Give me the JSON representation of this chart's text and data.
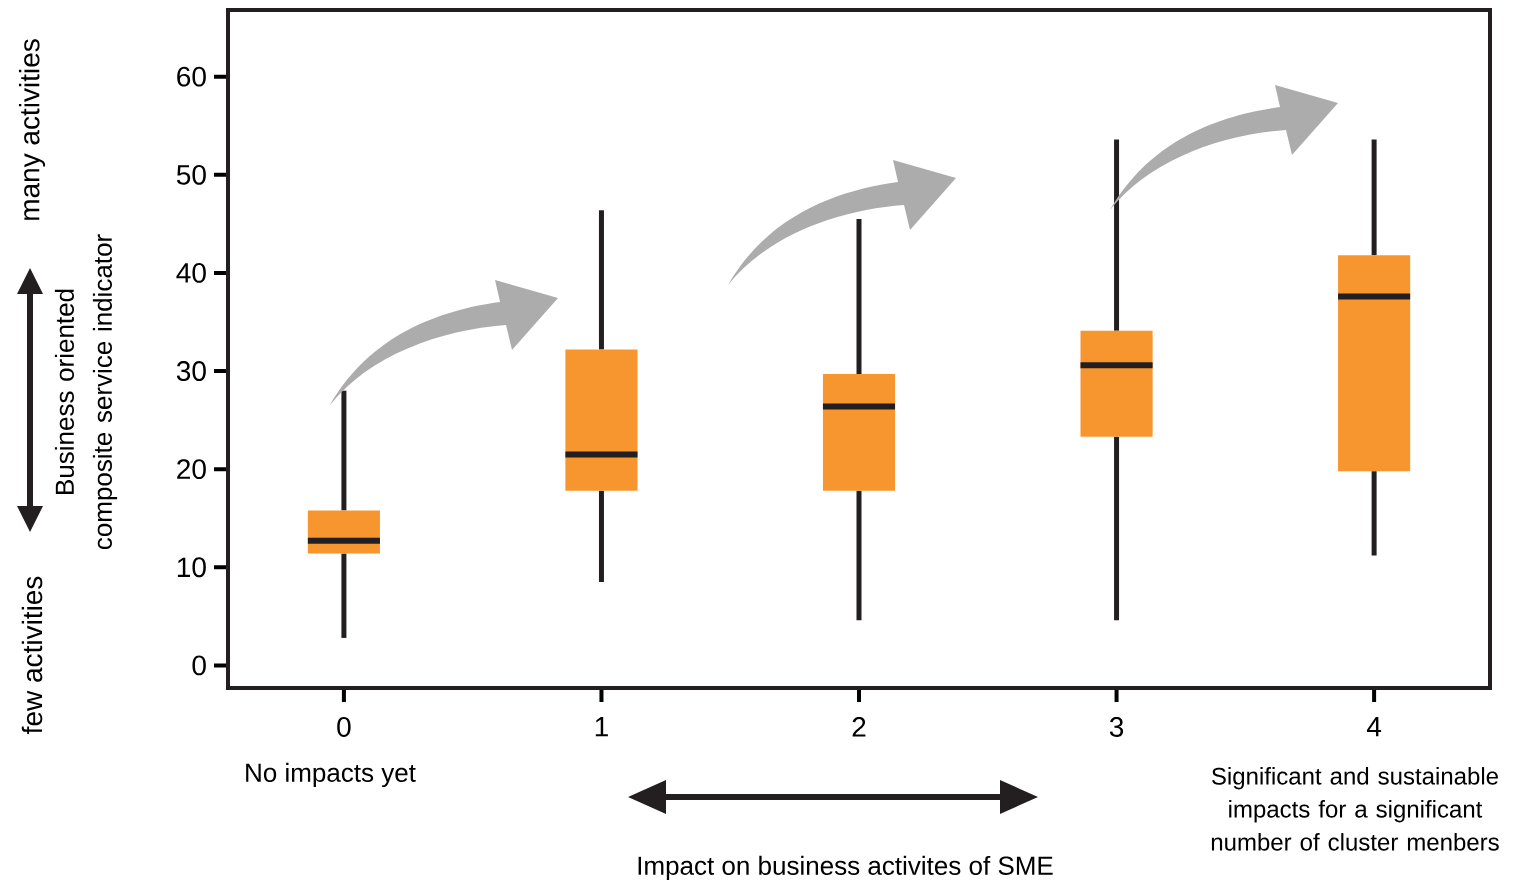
{
  "chart_data": {
    "type": "box",
    "xlabel": "Impact on business activites of SME",
    "ylabel": "Business oriented composite service indicator",
    "categories": [
      "0",
      "1",
      "2",
      "3",
      "4"
    ],
    "boxes": [
      {
        "low": 2.8,
        "q1": 11.4,
        "median": 12.7,
        "q3": 15.8,
        "high": 28
      },
      {
        "low": 8.5,
        "q1": 17.8,
        "median": 21.5,
        "q3": 32.2,
        "high": 46.4
      },
      {
        "low": 4.6,
        "q1": 17.8,
        "median": 26.4,
        "q3": 29.7,
        "high": 45.5
      },
      {
        "low": 4.6,
        "q1": 23.3,
        "median": 30.6,
        "q3": 34.1,
        "high": 53.6
      },
      {
        "low": 11.2,
        "q1": 19.8,
        "median": 37.6,
        "q3": 41.8,
        "high": 53.6
      }
    ],
    "color": "#f7962f",
    "ylim": [
      -2.3,
      66.8
    ],
    "yticks": [
      0,
      10,
      20,
      30,
      40,
      50,
      60
    ],
    "annotations": [
      "No impacts yet",
      "Significant and sustainable impacts for a significant number of cluster menbers",
      "many activities",
      "few activities"
    ]
  }
}
